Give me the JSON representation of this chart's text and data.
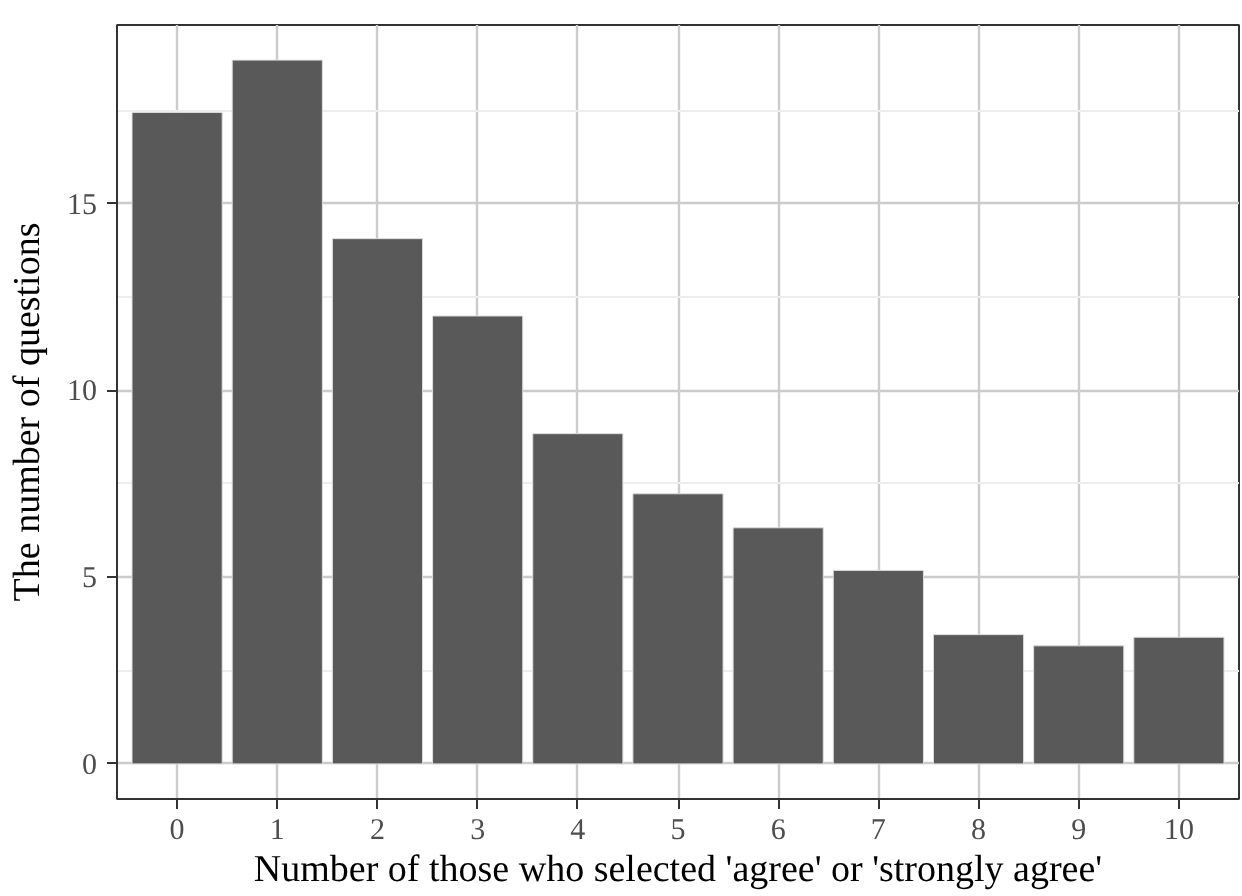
{
  "chart_data": {
    "type": "bar",
    "xlabel": "Number of those who selected 'agree' or 'strongly agree'",
    "ylabel": "The number of questions",
    "categories": [
      "0",
      "1",
      "2",
      "3",
      "4",
      "5",
      "6",
      "7",
      "8",
      "9",
      "10"
    ],
    "values": [
      17.44,
      18.84,
      14.06,
      11.99,
      8.84,
      7.23,
      6.32,
      5.18,
      3.46,
      3.16,
      3.39
    ],
    "color": "#595959",
    "ylim": [
      -0.94,
      19.78
    ],
    "yticks": [
      0,
      5,
      10,
      15
    ],
    "grid": true
  }
}
